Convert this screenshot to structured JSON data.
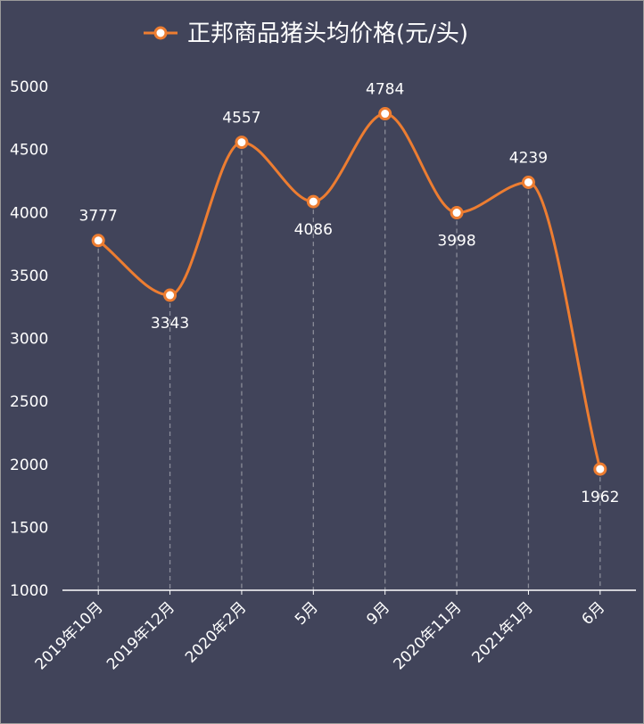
{
  "chart_data": {
    "type": "line",
    "title": "正邦商品猪头均价格(元/头)",
    "legend": {
      "entries": [
        "正邦商品猪头均价格(元/头)"
      ],
      "placement": "top-center"
    },
    "categories": [
      "2019年10月",
      "2019年12月",
      "2020年2月",
      "5月",
      "9月",
      "2020年11月",
      "2021年1月",
      "6月"
    ],
    "series": [
      {
        "name": "正邦商品猪头均价格(元/头)",
        "values": [
          3777,
          3343,
          4557,
          4086,
          4784,
          3998,
          4239,
          1962
        ]
      }
    ],
    "data_labels": [
      "3777",
      "3343",
      "4557",
      "4086",
      "4784",
      "3998",
      "4239",
      "1962"
    ],
    "y_ticks": [
      "1000",
      "1500",
      "2000",
      "2500",
      "3000",
      "3500",
      "4000",
      "4500",
      "5000"
    ],
    "ylim": [
      1000,
      5000
    ],
    "grid": false,
    "smooth": true,
    "xlabel": "",
    "ylabel": ""
  },
  "colors": {
    "background": "#41445a",
    "line": "#ed7d31",
    "marker_fill": "#ffffff",
    "drop_line": "#8a8c99",
    "axis": "#ffffff",
    "text": "#ffffff"
  }
}
